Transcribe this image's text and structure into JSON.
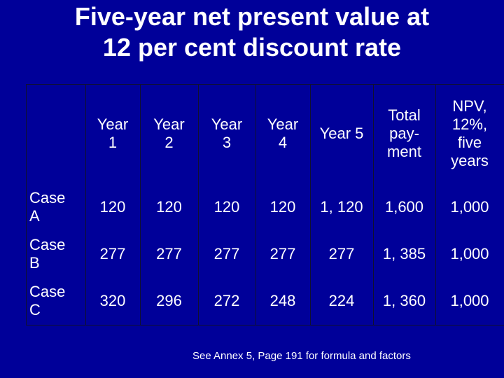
{
  "title": [
    "Five-year net present value at",
    "12 per cent discount rate"
  ],
  "table": {
    "columns": [
      [
        "Year",
        "1"
      ],
      [
        "Year",
        "2"
      ],
      [
        "Year",
        "3"
      ],
      [
        "Year",
        "4"
      ],
      [
        "Year 5"
      ],
      [
        "Total",
        "pay-",
        "ment"
      ],
      [
        "NPV,",
        "12%,",
        "five",
        "years"
      ]
    ],
    "rows": [
      {
        "label": [
          "Case",
          "A"
        ],
        "cells": [
          "120",
          "120",
          "120",
          "120",
          "1, 120",
          "1,600",
          "1,000"
        ]
      },
      {
        "label": [
          "Case",
          "B"
        ],
        "cells": [
          "277",
          "277",
          "277",
          "277",
          "277",
          "1, 385",
          "1,000"
        ]
      },
      {
        "label": [
          "Case",
          "C"
        ],
        "cells": [
          "320",
          "296",
          "272",
          "248",
          "224",
          "1, 360",
          "1,000"
        ]
      }
    ]
  },
  "footnote": "See Annex 5, Page 191 for formula and factors"
}
